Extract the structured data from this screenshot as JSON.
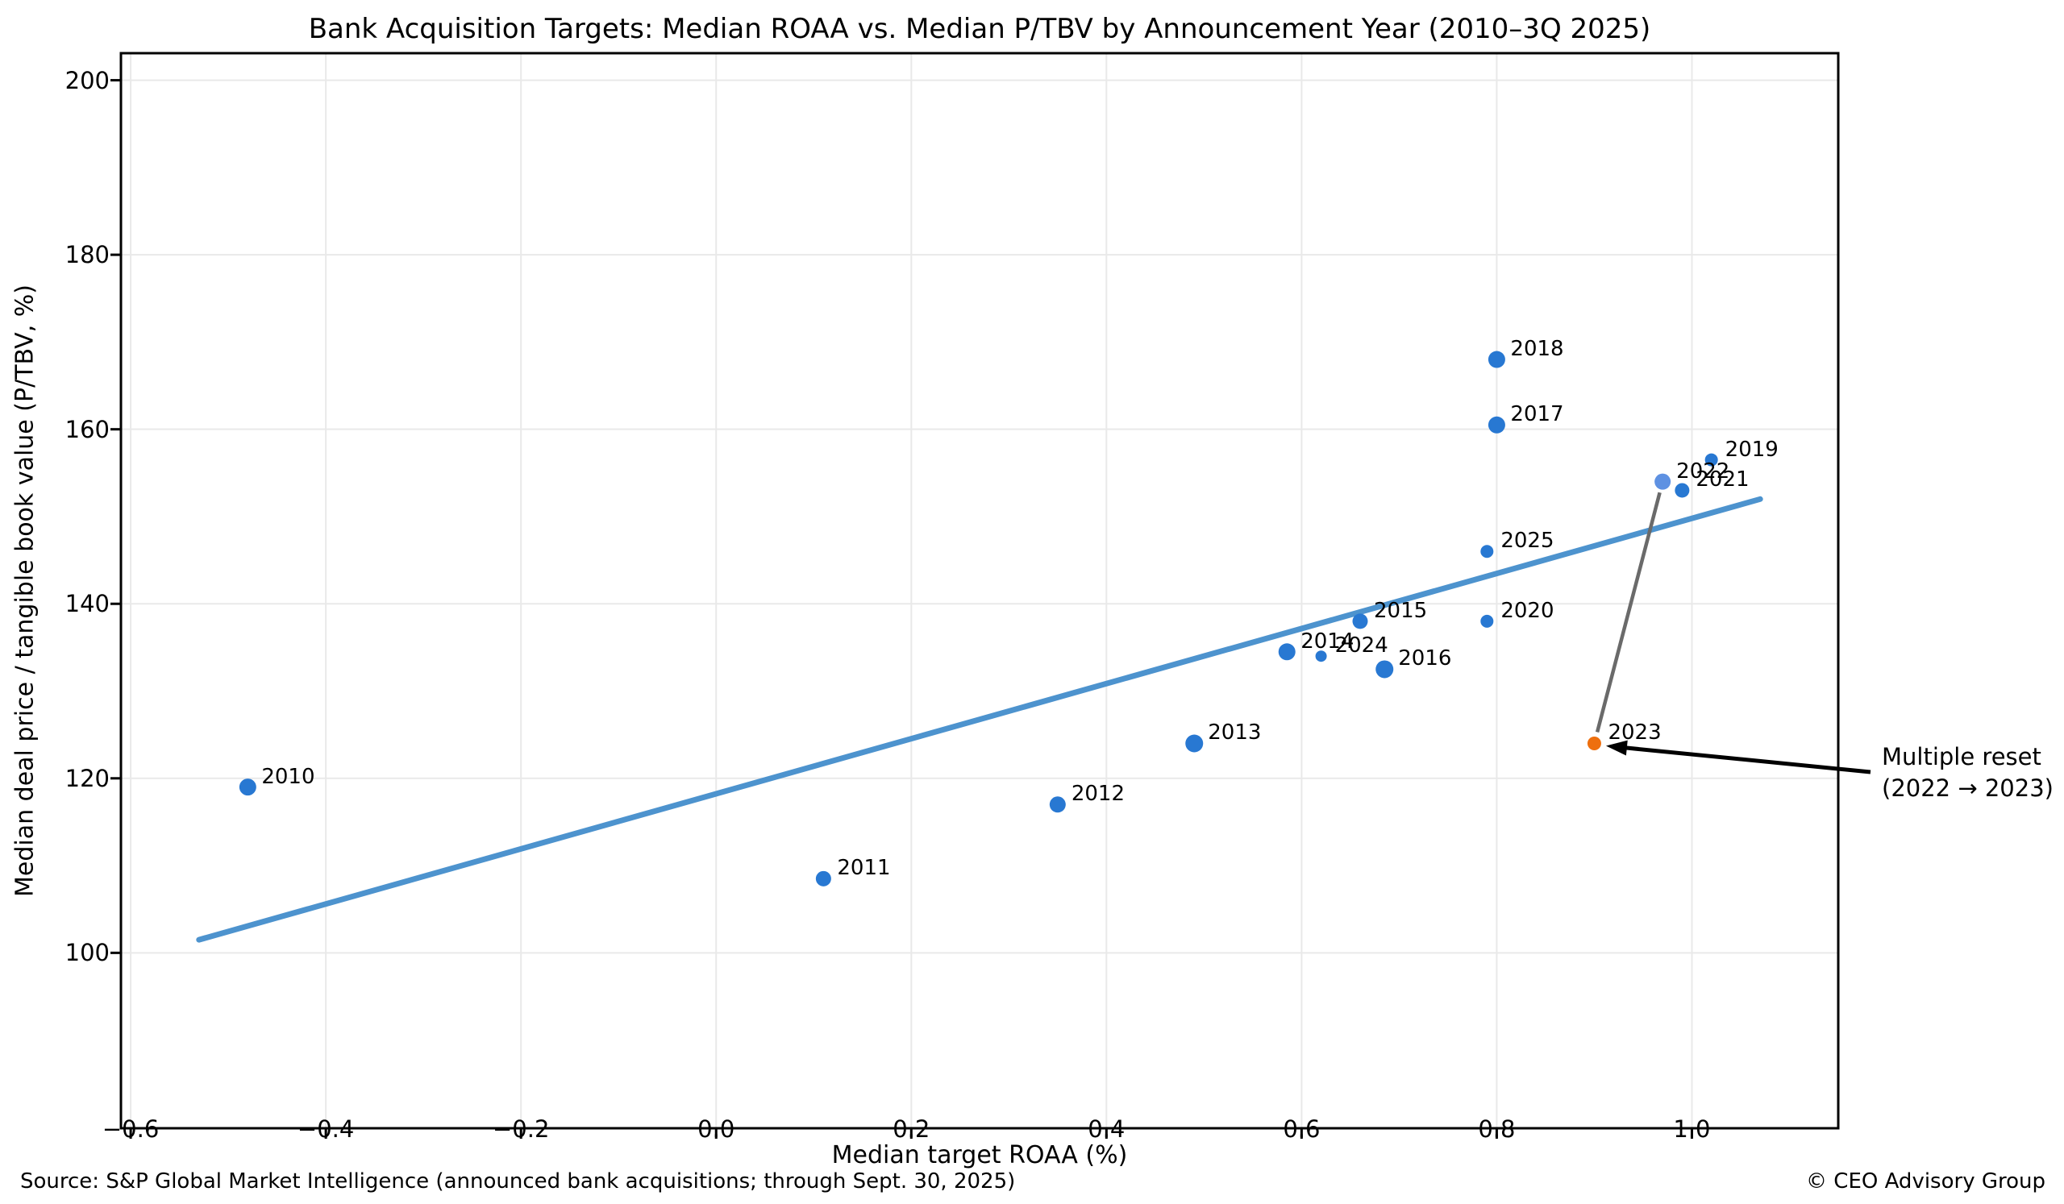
{
  "title": "Bank Acquisition Targets: Median ROAA vs. Median P/TBV by Announcement Year (2010–3Q 2025)",
  "chart_data": {
    "type": "scatter",
    "title": "Bank Acquisition Targets: Median ROAA vs. Median P/TBV by Announcement Year (2010–3Q 2025)",
    "xlabel": "Median target ROAA (%)",
    "ylabel": "Median deal price / tangible book value (P/TBV, %)",
    "xlim": [
      -0.61,
      1.15
    ],
    "ylim": [
      79.9,
      203.1
    ],
    "grid": true,
    "legend": "none",
    "x_ticks": [
      -0.6,
      -0.4,
      -0.2,
      0.0,
      0.2,
      0.4,
      0.6,
      0.8,
      1.0
    ],
    "x_tick_labels": [
      "−0.6",
      "−0.4",
      "−0.2",
      "0.0",
      "0.2",
      "0.4",
      "0.6",
      "0.8",
      "1.0"
    ],
    "y_ticks": [
      100,
      120,
      140,
      160,
      180,
      200
    ],
    "y_tick_labels": [
      "100",
      "120",
      "140",
      "160",
      "180",
      "200"
    ],
    "points": [
      {
        "year": "2010",
        "x": -0.48,
        "y": 119.0,
        "r": 10.5,
        "c": "blue"
      },
      {
        "year": "2011",
        "x": 0.11,
        "y": 108.5,
        "r": 9.5,
        "c": "blue"
      },
      {
        "year": "2012",
        "x": 0.35,
        "y": 117.0,
        "r": 10,
        "c": "blue"
      },
      {
        "year": "2013",
        "x": 0.49,
        "y": 124.0,
        "r": 11,
        "c": "blue"
      },
      {
        "year": "2014",
        "x": 0.585,
        "y": 134.5,
        "r": 10.5,
        "c": "blue"
      },
      {
        "year": "2015",
        "x": 0.66,
        "y": 138.0,
        "r": 9.5,
        "c": "blue"
      },
      {
        "year": "2016",
        "x": 0.685,
        "y": 132.5,
        "r": 11,
        "c": "blue"
      },
      {
        "year": "2017",
        "x": 0.8,
        "y": 160.5,
        "r": 10.5,
        "c": "blue"
      },
      {
        "year": "2018",
        "x": 0.8,
        "y": 168.0,
        "r": 10.5,
        "c": "blue"
      },
      {
        "year": "2019",
        "x": 1.02,
        "y": 156.5,
        "r": 8,
        "c": "blue"
      },
      {
        "year": "2020",
        "x": 0.79,
        "y": 138.0,
        "r": 8,
        "c": "blue"
      },
      {
        "year": "2021",
        "x": 0.99,
        "y": 153.0,
        "r": 9,
        "c": "blue"
      },
      {
        "year": "2022",
        "x": 0.97,
        "y": 154.0,
        "r": 10,
        "c": "lightblue"
      },
      {
        "year": "2023",
        "x": 0.9,
        "y": 124.0,
        "r": 8.5,
        "c": "orange"
      },
      {
        "year": "2024",
        "x": 0.62,
        "y": 134.0,
        "r": 7,
        "c": "blue"
      },
      {
        "year": "2025",
        "x": 0.79,
        "y": 146.0,
        "r": 8,
        "c": "blue"
      }
    ],
    "trendline": {
      "x1": -0.53,
      "y1": 101.5,
      "x2": 1.07,
      "y2": 152.0
    },
    "connector": {
      "from_year": "2022",
      "to_year": "2023"
    },
    "annotation": {
      "text_line1": "Multiple reset",
      "text_line2": "(2022 → 2023)",
      "target_year": "2023"
    }
  },
  "colors": {
    "blue": "#2878d2",
    "lightblue": "#5e91e2",
    "orange": "#ee6f0e",
    "trend": "#4d93ce",
    "grid": "#e9e9e9",
    "connector": "#6a6a6a",
    "spine": "#000000",
    "arrow": "#000000"
  },
  "footer": {
    "source": "Source: S&P Global Market Intelligence (announced bank acquisitions; through Sept. 30, 2025)",
    "credit": "© CEO Advisory Group"
  }
}
